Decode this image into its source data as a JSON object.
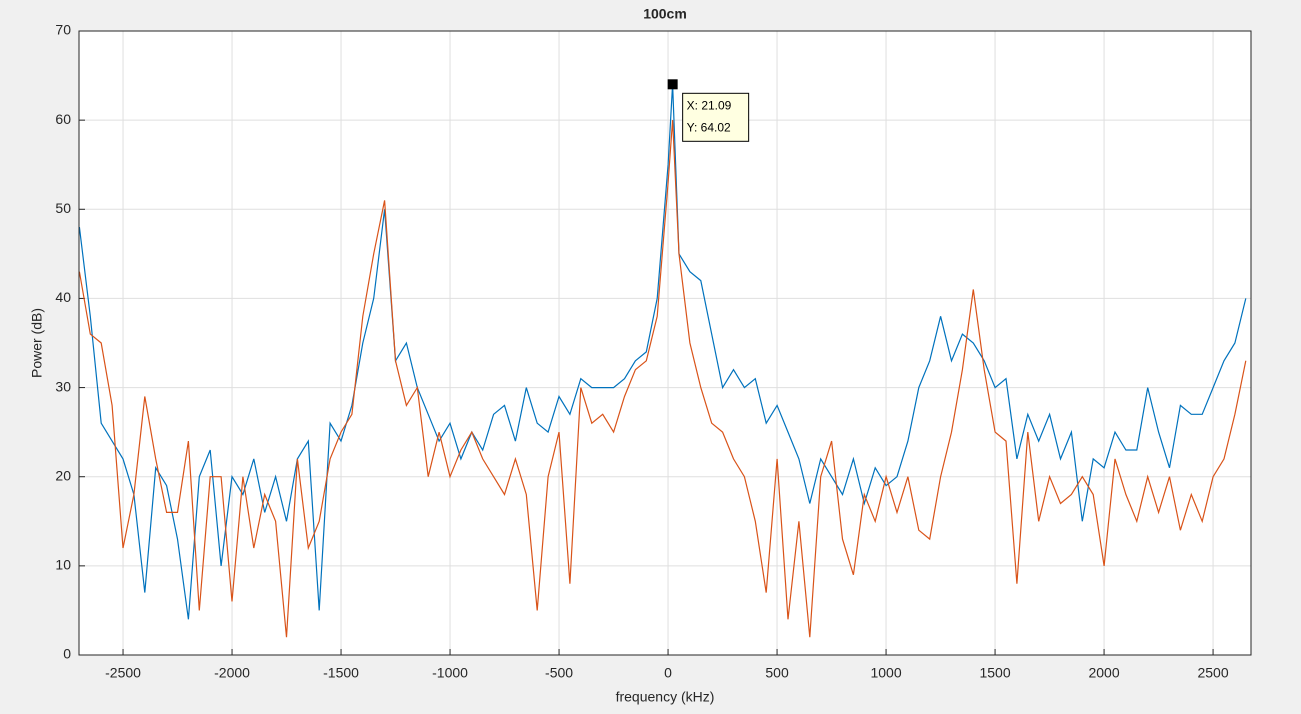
{
  "chart_data": {
    "type": "line",
    "title": "100cm",
    "xlabel": "frequency (kHz)",
    "ylabel": "Power (dB)",
    "x": [
      -2700,
      -2650,
      -2600,
      -2550,
      -2500,
      -2450,
      -2400,
      -2350,
      -2300,
      -2250,
      -2200,
      -2150,
      -2100,
      -2050,
      -2000,
      -1950,
      -1900,
      -1850,
      -1800,
      -1750,
      -1700,
      -1650,
      -1600,
      -1550,
      -1500,
      -1450,
      -1400,
      -1350,
      -1300,
      -1250,
      -1200,
      -1150,
      -1100,
      -1050,
      -1000,
      -950,
      -900,
      -850,
      -800,
      -750,
      -700,
      -650,
      -600,
      -550,
      -500,
      -450,
      -400,
      -350,
      -300,
      -250,
      -200,
      -150,
      -100,
      -50,
      0,
      21.09,
      50,
      100,
      150,
      200,
      250,
      300,
      350,
      400,
      450,
      500,
      550,
      600,
      650,
      700,
      750,
      800,
      850,
      900,
      950,
      1000,
      1050,
      1100,
      1150,
      1200,
      1250,
      1300,
      1350,
      1400,
      1450,
      1500,
      1550,
      1600,
      1650,
      1700,
      1750,
      1800,
      1850,
      1900,
      1950,
      2000,
      2050,
      2100,
      2150,
      2200,
      2250,
      2300,
      2350,
      2400,
      2450,
      2500,
      2550,
      2600,
      2650
    ],
    "series": [
      {
        "color": "#0072bd",
        "values": [
          48,
          38,
          26,
          24,
          22,
          18,
          7,
          21,
          19,
          13,
          4,
          20,
          23,
          10,
          20,
          18,
          22,
          16,
          20,
          15,
          22,
          24,
          5,
          26,
          24,
          28,
          35,
          40,
          50,
          33,
          35,
          30,
          27,
          24,
          26,
          22,
          25,
          23,
          27,
          28,
          24,
          30,
          26,
          25,
          29,
          27,
          31,
          30,
          30,
          30,
          31,
          33,
          34,
          40,
          55,
          64.02,
          45,
          43,
          42,
          36,
          30,
          32,
          30,
          31,
          26,
          28,
          25,
          22,
          17,
          22,
          20,
          18,
          22,
          17,
          21,
          19,
          20,
          24,
          30,
          33,
          38,
          33,
          36,
          35,
          33,
          30,
          31,
          22,
          27,
          24,
          27,
          22,
          25,
          15,
          22,
          21,
          25,
          23,
          23,
          30,
          25,
          21,
          28,
          27,
          27,
          30,
          33,
          35,
          40
        ]
      },
      {
        "color": "#d95319",
        "values": [
          43,
          36,
          35,
          28,
          12,
          18,
          29,
          22,
          16,
          16,
          24,
          5,
          20,
          20,
          6,
          20,
          12,
          18,
          15,
          2,
          22,
          12,
          15,
          22,
          25,
          27,
          38,
          45,
          51,
          33,
          28,
          30,
          20,
          25,
          20,
          23,
          25,
          22,
          20,
          18,
          22,
          18,
          5,
          20,
          25,
          8,
          30,
          26,
          27,
          25,
          29,
          32,
          33,
          38,
          53,
          60,
          45,
          35,
          30,
          26,
          25,
          22,
          20,
          15,
          7,
          22,
          4,
          15,
          2,
          20,
          24,
          13,
          9,
          18,
          15,
          20,
          16,
          20,
          14,
          13,
          20,
          25,
          32,
          41,
          32,
          25,
          24,
          8,
          25,
          15,
          20,
          17,
          18,
          20,
          18,
          10,
          22,
          18,
          15,
          20,
          16,
          20,
          14,
          18,
          15,
          20,
          22,
          27,
          33
        ]
      }
    ],
    "xlim": [
      -2702,
      2674
    ],
    "ylim": [
      0,
      70
    ],
    "xticks": [
      -2500,
      -2000,
      -1500,
      -1000,
      -500,
      0,
      500,
      1000,
      1500,
      2000,
      2500
    ],
    "yticks": [
      0,
      10,
      20,
      30,
      40,
      50,
      60,
      70
    ],
    "grid": true,
    "datatip": {
      "x": 21.09,
      "y": 64.02,
      "lines": [
        "X: 21.09",
        "Y: 64.02"
      ]
    }
  }
}
